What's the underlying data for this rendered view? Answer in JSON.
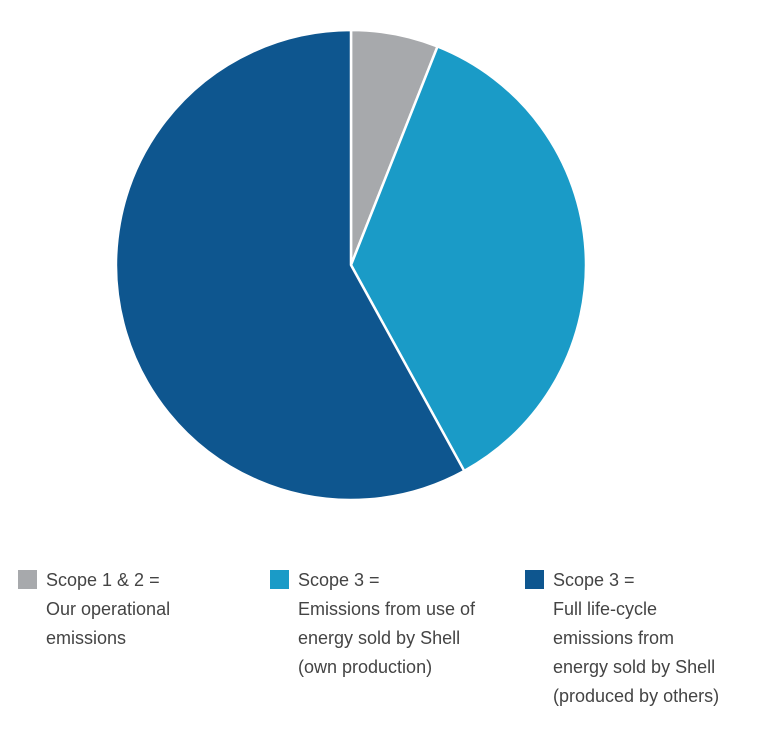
{
  "chart_data": {
    "type": "pie",
    "categories": [
      "Scope 1 & 2 =\nOur operational\nemissions",
      "Scope 3 =\nEmissions from use of\nenergy sold by Shell\n(own production)",
      "Scope 3 =\nFull life-cycle\nemissions from\nenergy sold by Shell\n(produced by others)"
    ],
    "values": [
      6,
      36,
      58
    ],
    "colors": [
      "#a7a9ac",
      "#1a9bc7",
      "#0e568f"
    ]
  }
}
